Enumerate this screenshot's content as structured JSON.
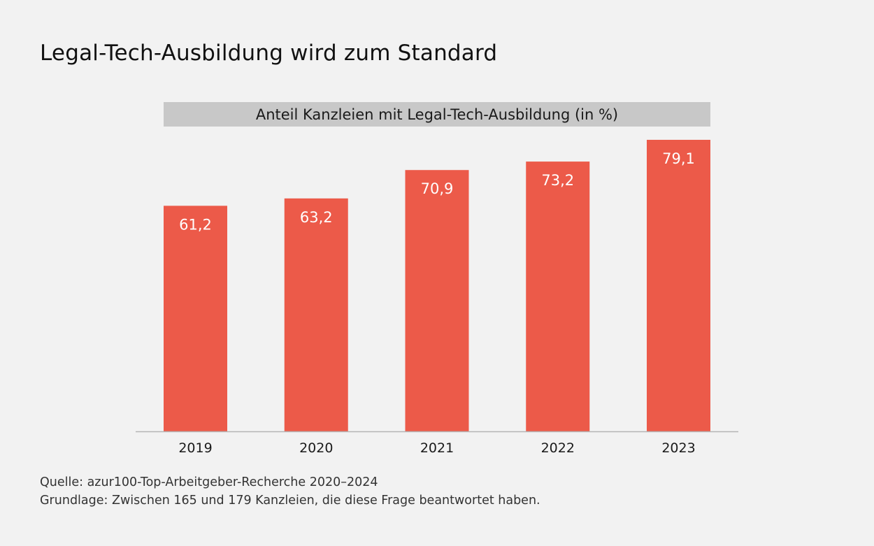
{
  "title": "Legal-Tech-Ausbildung wird zum Standard",
  "source": "Quelle: azur100-Top-Arbeitgeber-Recherche 2020–2024",
  "basis": "Grundlage: Zwischen 165 und 179 Kanzleien, die diese Frage beantwortet haben.",
  "colors": {
    "bar": "#ec5a49",
    "background": "#f2f2f2",
    "banner": "#c8c8c8",
    "axis": "#b5b5b5"
  },
  "chart_data": {
    "type": "bar",
    "title": "Anteil Kanzleien mit Legal-Tech-Ausbildung (in %)",
    "categories": [
      "2019",
      "2020",
      "2021",
      "2022",
      "2023"
    ],
    "values": [
      61.2,
      63.2,
      70.9,
      73.2,
      79.1
    ],
    "value_labels": [
      "61,2",
      "63,2",
      "70,9",
      "73,2",
      "79,1"
    ],
    "ylim": [
      0,
      79.1
    ],
    "grid": false,
    "legend": "none"
  }
}
